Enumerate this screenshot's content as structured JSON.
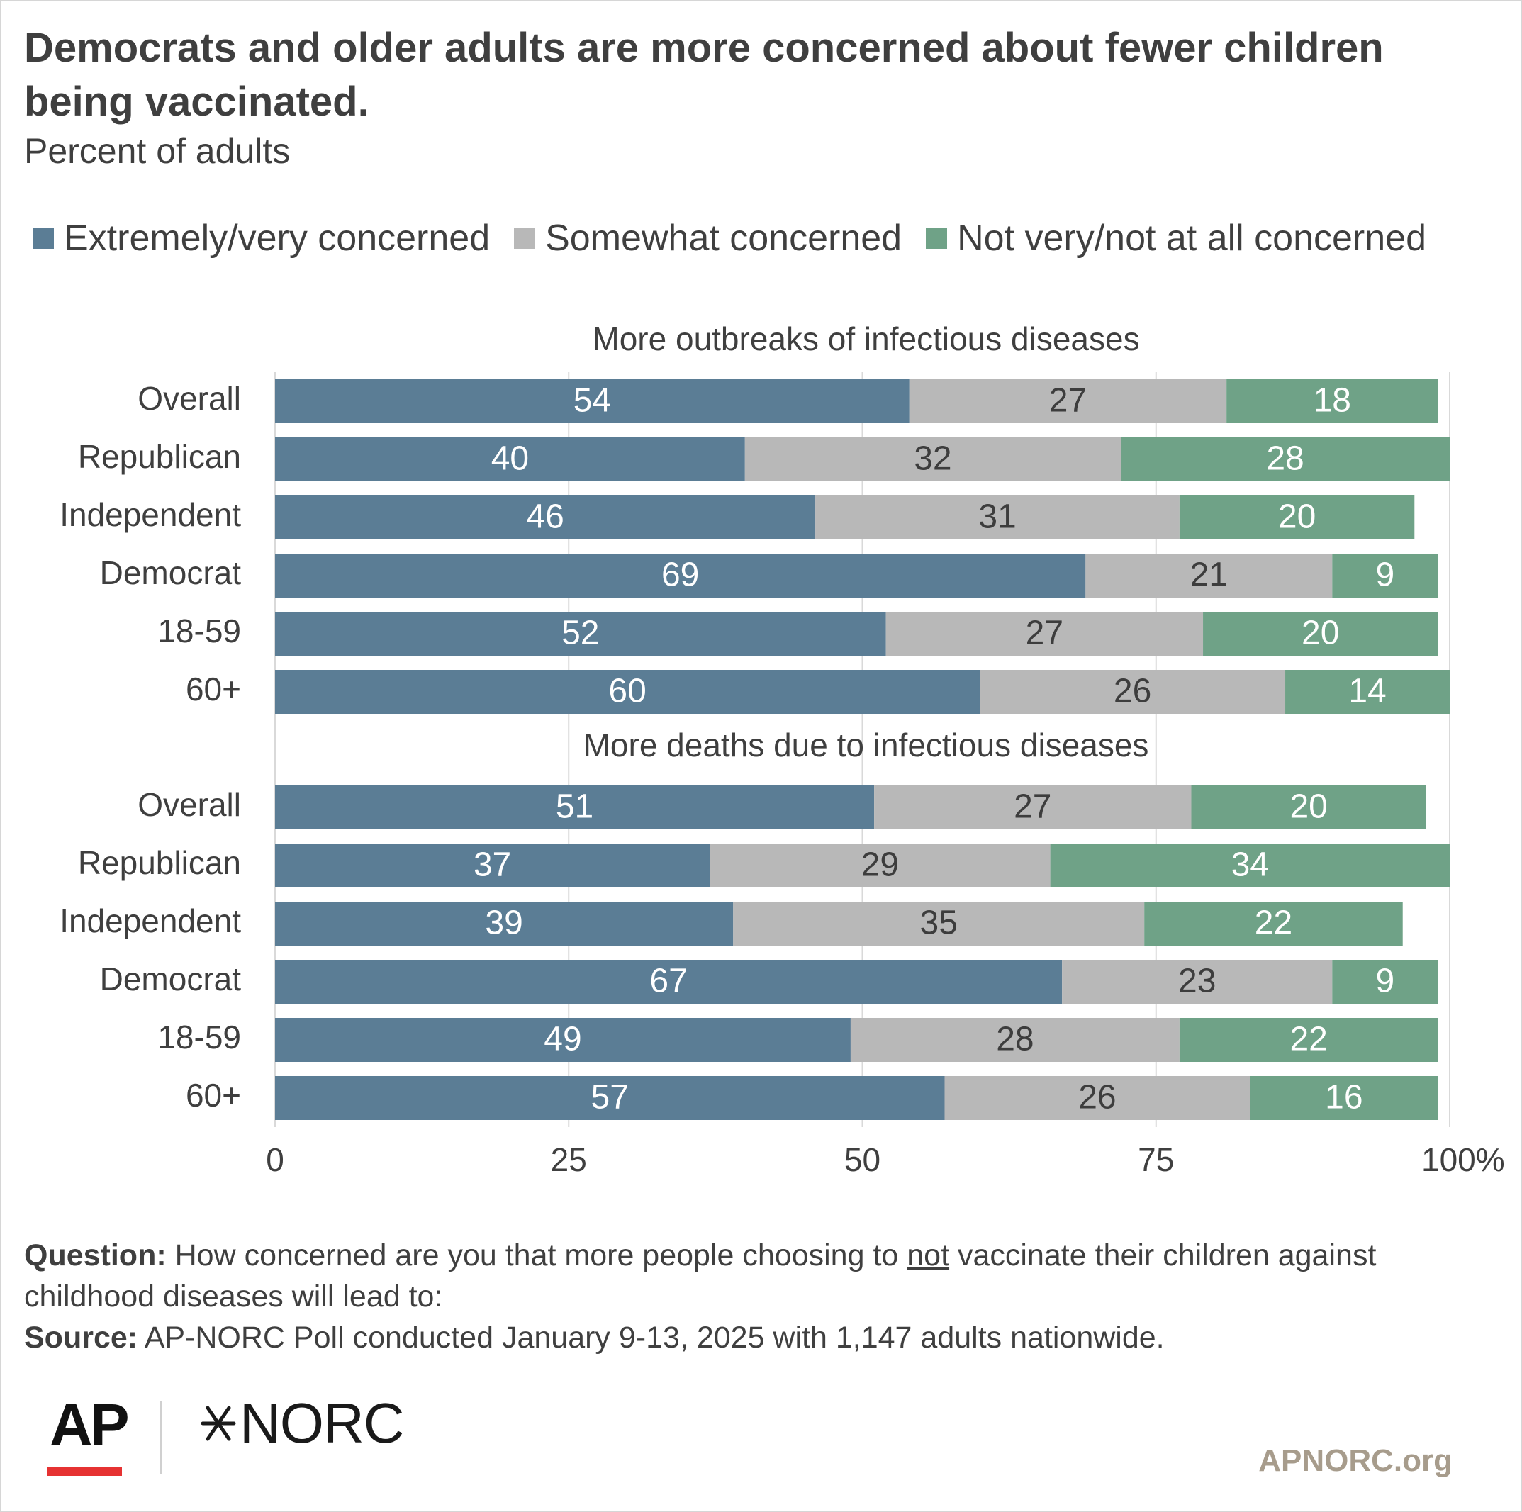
{
  "title": "Democrats and older adults are more concerned about fewer children being vaccinated.",
  "subtitle": "Percent of adults",
  "legend": [
    {
      "label": "Extremely/very concerned",
      "color": "#5b7d95"
    },
    {
      "label": "Somewhat concerned",
      "color": "#b8b8b8"
    },
    {
      "label": "Not very/not at all concerned",
      "color": "#6fa287"
    }
  ],
  "chart_data": {
    "type": "bar",
    "orientation": "horizontal",
    "stacked": true,
    "xlim": [
      0,
      100
    ],
    "x_ticks": [
      "0",
      "25",
      "50",
      "75",
      "100%"
    ],
    "grid": true,
    "legend_position": "top",
    "series_names": [
      "Extremely/very concerned",
      "Somewhat concerned",
      "Not very/not at all concerned"
    ],
    "series_colors": [
      "#5b7d95",
      "#b8b8b8",
      "#6fa287"
    ],
    "panels": [
      {
        "title": "More outbreaks of infectious diseases",
        "categories": [
          "Overall",
          "Republican",
          "Independent",
          "Democrat",
          "18-59",
          "60+"
        ],
        "series": [
          {
            "name": "Extremely/very concerned",
            "values": [
              54,
              40,
              46,
              69,
              52,
              60
            ]
          },
          {
            "name": "Somewhat concerned",
            "values": [
              27,
              32,
              31,
              21,
              27,
              26
            ]
          },
          {
            "name": "Not very/not at all concerned",
            "values": [
              18,
              28,
              20,
              9,
              20,
              14
            ]
          }
        ]
      },
      {
        "title": "More deaths due to infectious diseases",
        "categories": [
          "Overall",
          "Republican",
          "Independent",
          "Democrat",
          "18-59",
          "60+"
        ],
        "series": [
          {
            "name": "Extremely/very concerned",
            "values": [
              51,
              37,
              39,
              67,
              49,
              57
            ]
          },
          {
            "name": "Somewhat concerned",
            "values": [
              27,
              29,
              35,
              23,
              28,
              26
            ]
          },
          {
            "name": "Not very/not at all concerned",
            "values": [
              20,
              34,
              22,
              9,
              22,
              16
            ]
          }
        ]
      }
    ]
  },
  "footnote": {
    "question_label": "Question:",
    "question_before": "How concerned are you that more people choosing to",
    "question_emph": "not",
    "question_after": "vaccinate their children against childhood diseases will lead to:",
    "source_label": "Source:",
    "source_text": "AP-NORC Poll conducted January 9-13, 2025 with 1,147 adults nationwide."
  },
  "logos": {
    "ap": "AP",
    "norc": "NORC",
    "norc_icon": "norc-asterisk-icon"
  },
  "site": "APNORC.org"
}
